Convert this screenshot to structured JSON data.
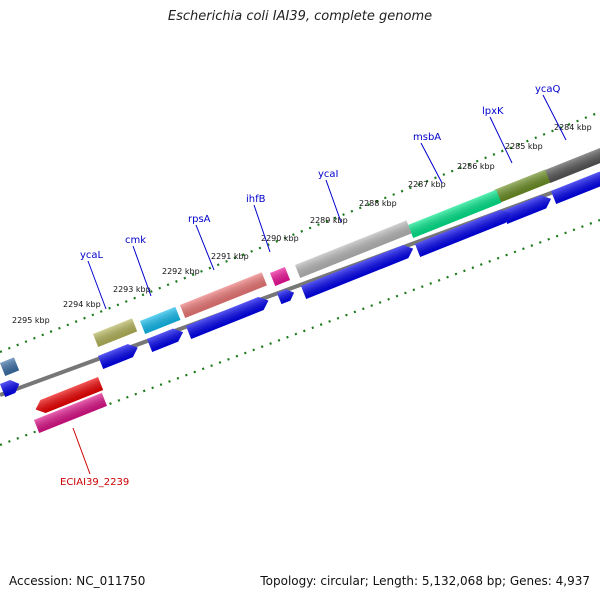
{
  "title": "Escherichia coli IAI39, complete genome",
  "footer": {
    "accession": "Accession: NC_011750",
    "summary": "Topology: circular; Length: 5,132,068 bp; Genes: 4,937"
  },
  "kbp_labels": [
    "2284 kbp",
    "2285 kbp",
    "2286 kbp",
    "2287 kbp",
    "2288 kbp",
    "2289 kbp",
    "2290 kbp",
    "2291 kbp",
    "2292 kbp",
    "2293 kbp",
    "2294 kbp",
    "2295 kbp"
  ],
  "gene_labels": [
    "ycaQ",
    "lpxK",
    "msbA",
    "ycaI",
    "ihfB",
    "rpsA",
    "cmk",
    "ycaL"
  ],
  "reverse_gene_label": "ECIAI39_2239",
  "colors": {
    "tick": "#1a7a1a",
    "backbone": "#888888",
    "cds": "#0000ee",
    "gene_label": "#0000cc",
    "reverse_label": "#cc0000"
  }
}
